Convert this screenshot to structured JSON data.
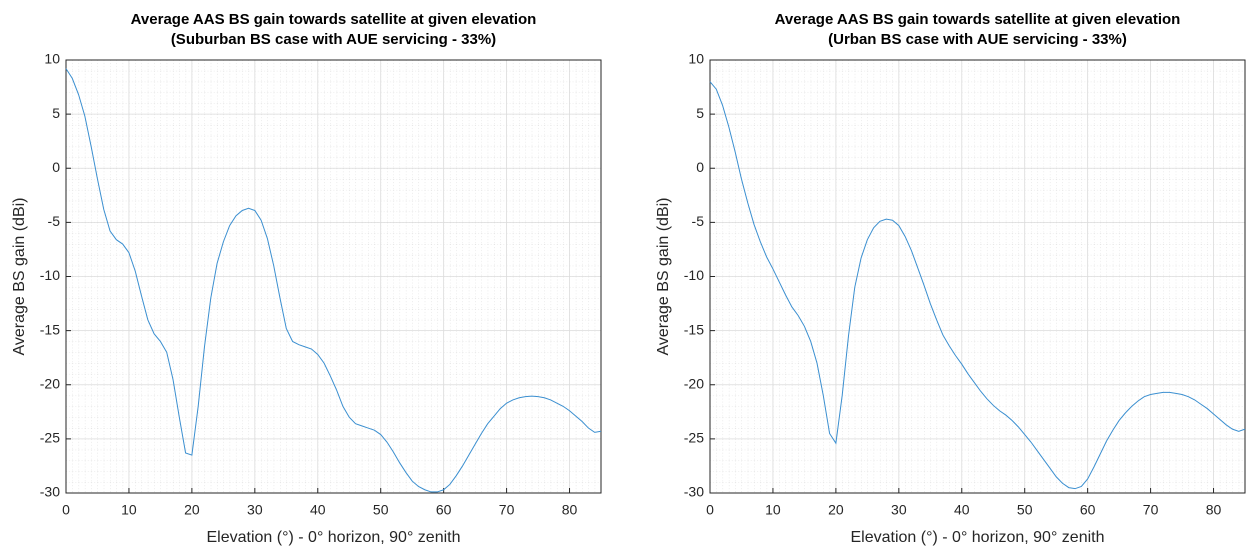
{
  "chart_data": [
    {
      "type": "line",
      "title": "Average AAS BS gain towards satellite at given elevation",
      "subtitle": "(Suburban BS case with AUE servicing - 33%)",
      "xlabel": "Elevation (°) - 0° horizon, 90° zenith",
      "ylabel": "Average BS gain (dBi)",
      "x": [
        0,
        1,
        2,
        3,
        4,
        5,
        6,
        7,
        8,
        9,
        10,
        11,
        12,
        13,
        14,
        15,
        16,
        17,
        18,
        19,
        20,
        21,
        22,
        23,
        24,
        25,
        26,
        27,
        28,
        29,
        30,
        31,
        32,
        33,
        34,
        35,
        36,
        37,
        38,
        39,
        40,
        41,
        42,
        43,
        44,
        45,
        46,
        47,
        48,
        49,
        50,
        51,
        52,
        53,
        54,
        55,
        56,
        57,
        58,
        59,
        60,
        61,
        62,
        63,
        64,
        65,
        66,
        67,
        68,
        69,
        70,
        71,
        72,
        73,
        74,
        75,
        76,
        77,
        78,
        79,
        80,
        81,
        82,
        83,
        84,
        85
      ],
      "series": [
        {
          "color": "#3b8fd0",
          "values": [
            9.2,
            8.3,
            6.8,
            4.8,
            2,
            -1,
            -3.8,
            -5.8,
            -6.6,
            -7,
            -7.8,
            -9.5,
            -11.8,
            -14,
            -15.3,
            -16,
            -17,
            -19.5,
            -23,
            -26.3,
            -26.5,
            -22,
            -16.5,
            -12,
            -8.8,
            -6.8,
            -5.3,
            -4.4,
            -3.9,
            -3.7,
            -3.9,
            -4.8,
            -6.5,
            -9,
            -12,
            -14.8,
            -16,
            -16.3,
            -16.5,
            -16.7,
            -17.2,
            -18,
            -19.2,
            -20.5,
            -22,
            -23,
            -23.6,
            -23.8,
            -24,
            -24.2,
            -24.6,
            -25.3,
            -26.2,
            -27.2,
            -28.1,
            -28.9,
            -29.4,
            -29.7,
            -29.9,
            -29.9,
            -29.7,
            -29.2,
            -28.4,
            -27.5,
            -26.5,
            -25.5,
            -24.5,
            -23.6,
            -22.9,
            -22.2,
            -21.7,
            -21.4,
            -21.2,
            -21.1,
            -21.05,
            -21.1,
            -21.2,
            -21.4,
            -21.7,
            -22,
            -22.4,
            -22.9,
            -23.4,
            -24,
            -24.4,
            -24.3
          ]
        }
      ],
      "xlim": [
        0,
        85
      ],
      "ylim": [
        -30,
        10
      ],
      "xticks": [
        0,
        10,
        20,
        30,
        40,
        50,
        60,
        70,
        80
      ],
      "yticks": [
        -30,
        -25,
        -20,
        -15,
        -10,
        -5,
        0,
        5,
        10
      ],
      "grid": true
    },
    {
      "type": "line",
      "title": "Average AAS BS gain towards satellite at given elevation",
      "subtitle": "(Urban BS case with AUE servicing - 33%)",
      "xlabel": "Elevation (°) - 0° horizon, 90° zenith",
      "ylabel": "Average BS gain (dBi)",
      "x": [
        0,
        1,
        2,
        3,
        4,
        5,
        6,
        7,
        8,
        9,
        10,
        11,
        12,
        13,
        14,
        15,
        16,
        17,
        18,
        19,
        20,
        21,
        22,
        23,
        24,
        25,
        26,
        27,
        28,
        29,
        30,
        31,
        32,
        33,
        34,
        35,
        36,
        37,
        38,
        39,
        40,
        41,
        42,
        43,
        44,
        45,
        46,
        47,
        48,
        49,
        50,
        51,
        52,
        53,
        54,
        55,
        56,
        57,
        58,
        59,
        60,
        61,
        62,
        63,
        64,
        65,
        66,
        67,
        68,
        69,
        70,
        71,
        72,
        73,
        74,
        75,
        76,
        77,
        78,
        79,
        80,
        81,
        82,
        83,
        84,
        85
      ],
      "series": [
        {
          "color": "#3b8fd0",
          "values": [
            8,
            7.3,
            5.8,
            3.8,
            1.5,
            -1,
            -3.2,
            -5.2,
            -6.8,
            -8.2,
            -9.3,
            -10.5,
            -11.7,
            -12.8,
            -13.6,
            -14.6,
            -16,
            -18,
            -21,
            -24.5,
            -25.4,
            -21,
            -15.5,
            -11,
            -8.3,
            -6.6,
            -5.5,
            -4.9,
            -4.7,
            -4.8,
            -5.3,
            -6.3,
            -7.6,
            -9.2,
            -10.8,
            -12.5,
            -14,
            -15.4,
            -16.4,
            -17.3,
            -18.1,
            -19,
            -19.8,
            -20.6,
            -21.3,
            -21.9,
            -22.4,
            -22.8,
            -23.3,
            -23.9,
            -24.6,
            -25.3,
            -26.1,
            -26.9,
            -27.7,
            -28.5,
            -29.1,
            -29.5,
            -29.6,
            -29.4,
            -28.7,
            -27.6,
            -26.4,
            -25.2,
            -24.2,
            -23.3,
            -22.6,
            -22,
            -21.5,
            -21.1,
            -20.9,
            -20.8,
            -20.7,
            -20.7,
            -20.8,
            -20.9,
            -21.1,
            -21.4,
            -21.8,
            -22.2,
            -22.7,
            -23.2,
            -23.7,
            -24.1,
            -24.3,
            -24.1
          ]
        }
      ],
      "xlim": [
        0,
        85
      ],
      "ylim": [
        -30,
        10
      ],
      "xticks": [
        0,
        10,
        20,
        30,
        40,
        50,
        60,
        70,
        80
      ],
      "yticks": [
        -30,
        -25,
        -20,
        -15,
        -10,
        -5,
        0,
        5,
        10
      ],
      "grid": true
    }
  ]
}
